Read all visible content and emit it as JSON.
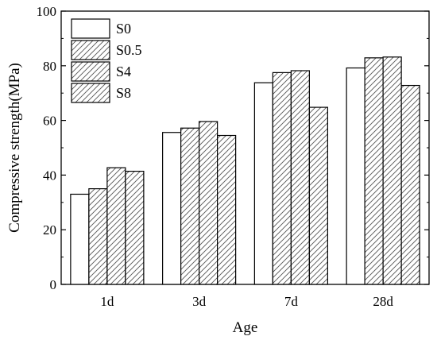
{
  "chart_data": {
    "type": "bar",
    "title": "",
    "xlabel": "Age",
    "ylabel": "Compressive strength(MPa)",
    "ylim": [
      0,
      100
    ],
    "yticks": [
      0,
      20,
      40,
      60,
      80,
      100
    ],
    "categories": [
      "1d",
      "3d",
      "7d",
      "28d"
    ],
    "series": [
      {
        "name": "S0",
        "values": [
          33.0,
          55.6,
          73.8,
          79.2
        ],
        "pattern": "none"
      },
      {
        "name": "S0.5",
        "values": [
          35.0,
          57.2,
          77.5,
          82.9
        ],
        "pattern": "hatch"
      },
      {
        "name": "S4",
        "values": [
          42.7,
          59.6,
          78.2,
          83.2
        ],
        "pattern": "hatch"
      },
      {
        "name": "S8",
        "values": [
          41.4,
          54.5,
          64.8,
          72.8
        ],
        "pattern": "hatch"
      }
    ],
    "legend_position": "top-left",
    "grid": false,
    "colors": {
      "fill": "#ffffff",
      "stroke": "#000000",
      "hatch": "#555555"
    }
  }
}
